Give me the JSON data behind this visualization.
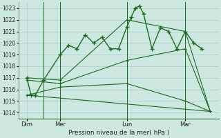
{
  "background_color": "#cce8e0",
  "grid_color": "#aacccc",
  "line_color": "#1a6b1a",
  "xlabel": "Pression niveau de la mer( hPa )",
  "ylim": [
    1013.5,
    1023.5
  ],
  "yticks": [
    1014,
    1015,
    1016,
    1017,
    1018,
    1019,
    1020,
    1021,
    1022,
    1023
  ],
  "xlim": [
    0,
    24
  ],
  "day_labels": [
    "Dim",
    "Mer",
    "Lun",
    "Mar"
  ],
  "day_positions": [
    1,
    5,
    13,
    20
  ],
  "vline_positions": [
    3,
    5,
    13,
    20
  ],
  "series_main_x": [
    1,
    1.5,
    2,
    3,
    5,
    6,
    7,
    8,
    9,
    10,
    11,
    12,
    13,
    13.5,
    14,
    14.5,
    15,
    16,
    17,
    18,
    19,
    20,
    21,
    22
  ],
  "series_main_y": [
    1017.0,
    1015.5,
    1015.5,
    1016.8,
    1019.0,
    1019.8,
    1019.5,
    1020.7,
    1020.0,
    1020.5,
    1019.5,
    1019.5,
    1021.4,
    1022.2,
    1023.0,
    1023.2,
    1022.5,
    1019.5,
    1021.3,
    1021.0,
    1019.5,
    1021.0,
    1020.0,
    1019.5
  ],
  "trend1_x": [
    1,
    5,
    13,
    20,
    23
  ],
  "trend1_y": [
    1017.0,
    1016.8,
    1022.0,
    1021.0,
    1014.1
  ],
  "trend2_x": [
    1,
    5,
    13,
    20,
    23
  ],
  "trend2_y": [
    1015.5,
    1016.2,
    1016.5,
    1015.0,
    1014.1
  ],
  "trend3_x": [
    1,
    5,
    13,
    20,
    23
  ],
  "trend3_y": [
    1016.8,
    1016.5,
    1018.5,
    1019.5,
    1014.1
  ],
  "trend4_x": [
    1,
    23
  ],
  "trend4_y": [
    1015.5,
    1014.1
  ]
}
